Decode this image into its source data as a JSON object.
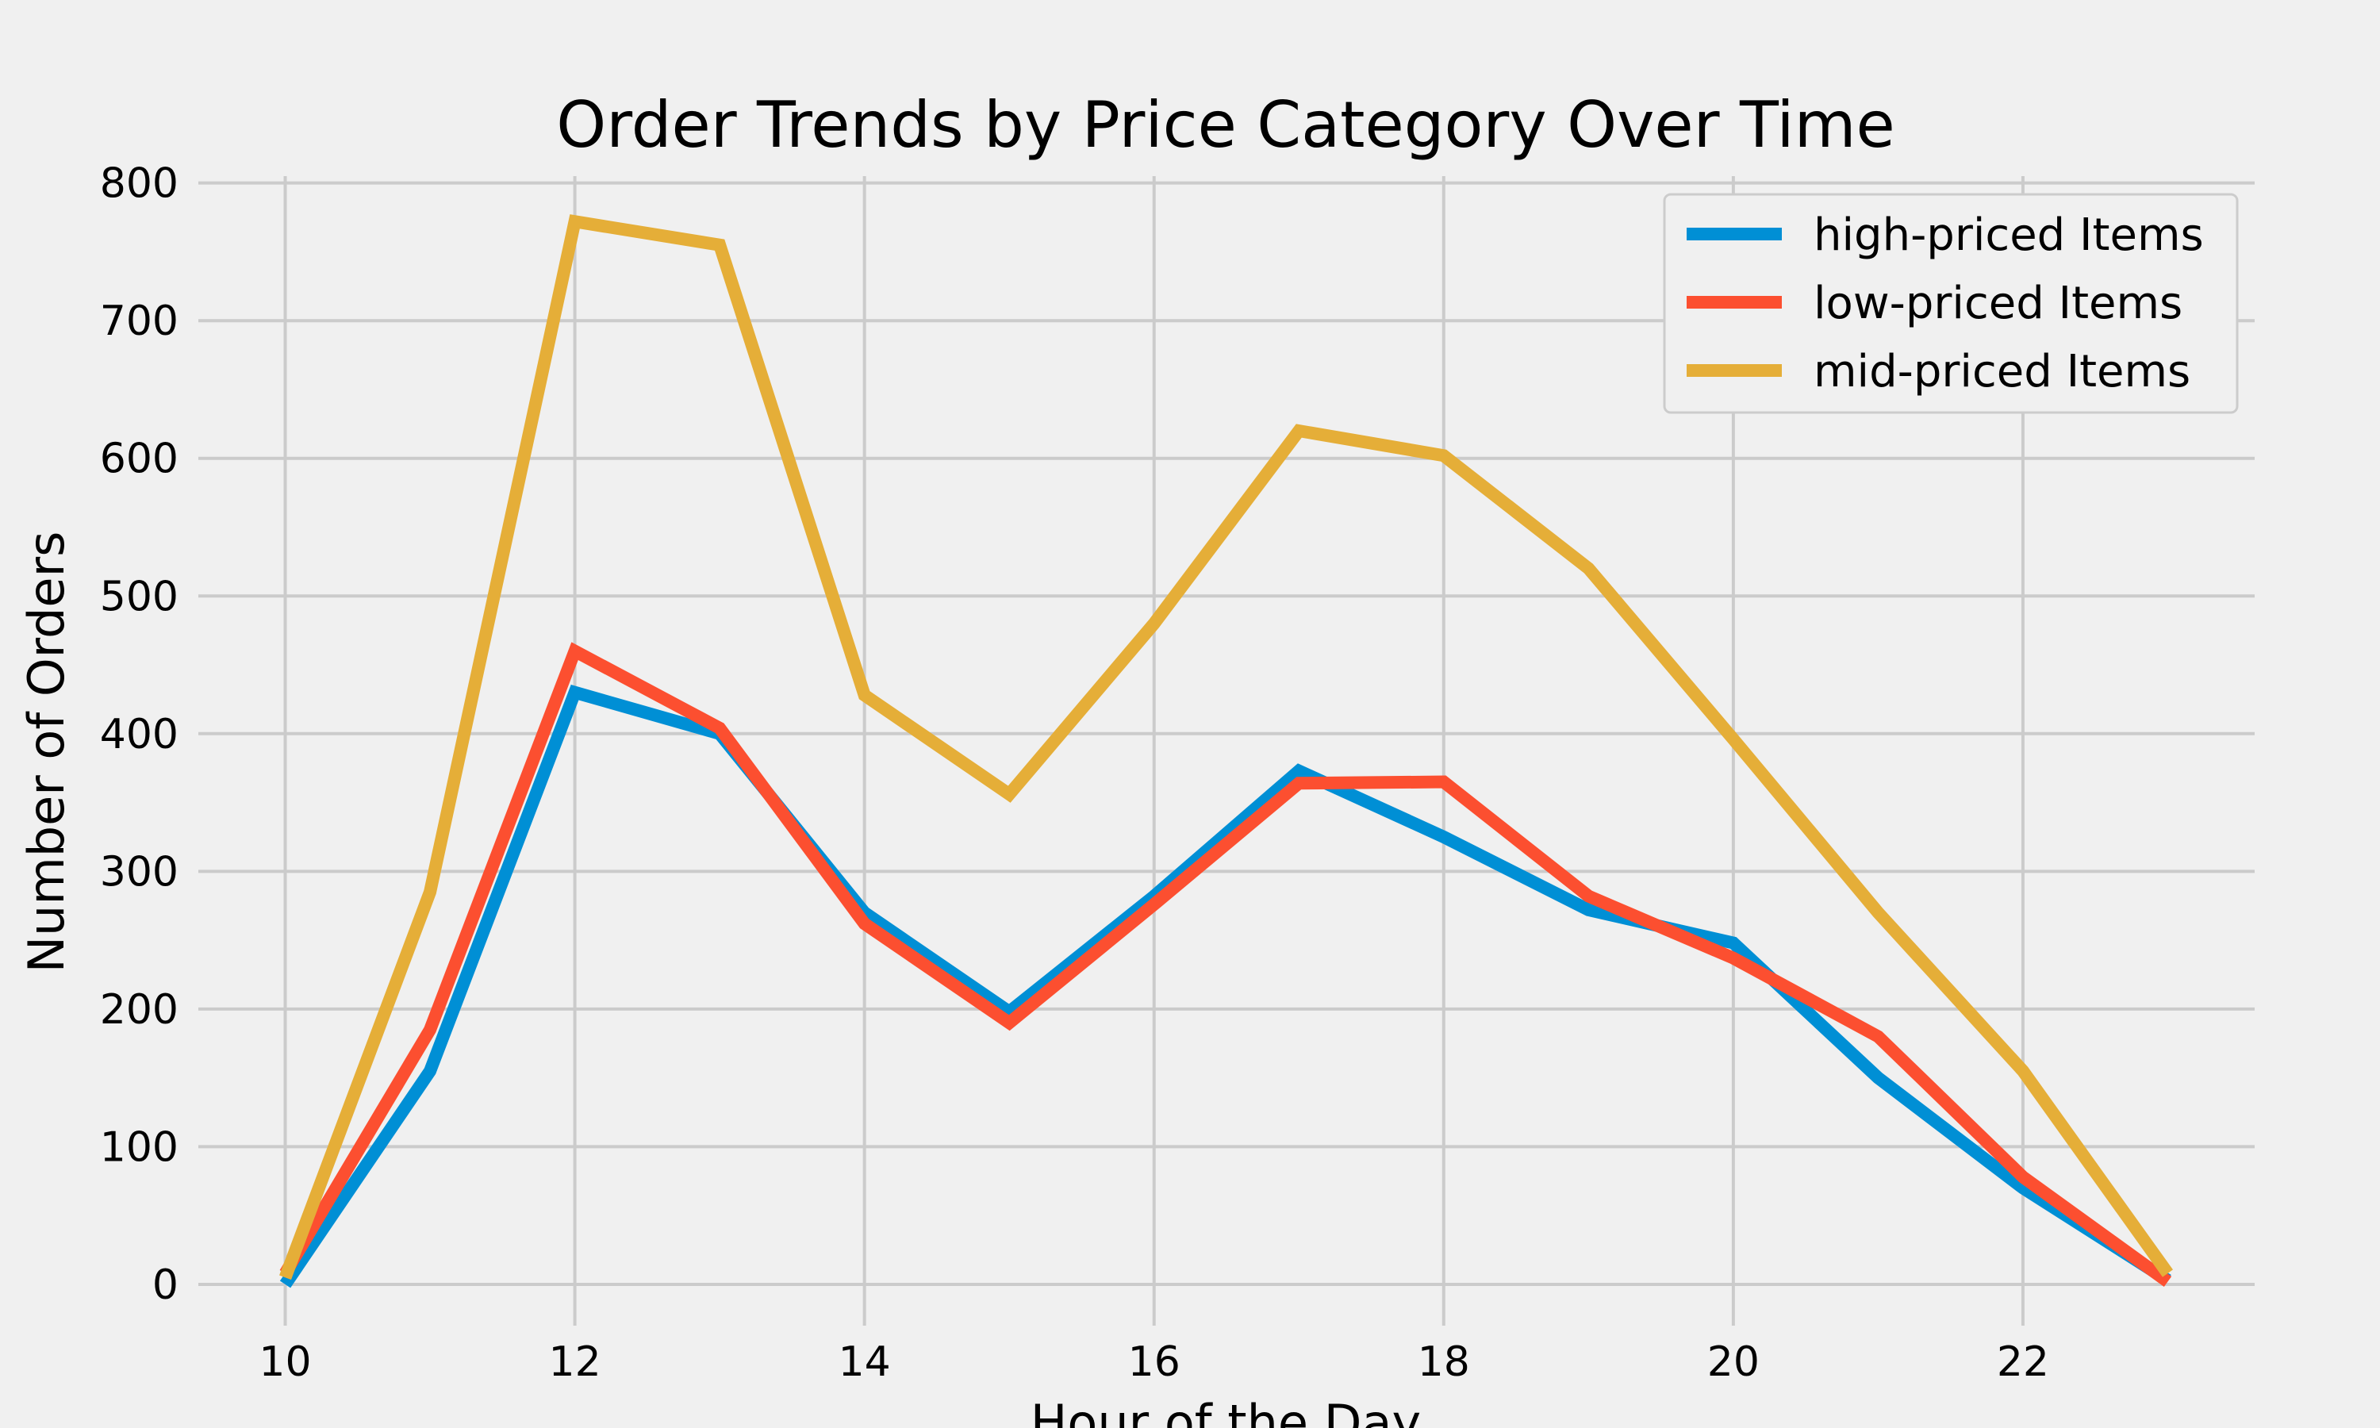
{
  "chart_data": {
    "type": "line",
    "title": "Order Trends by Price Category Over Time",
    "xlabel": "Hour of the Day",
    "ylabel": "Number of Orders",
    "x": [
      10,
      11,
      12,
      13,
      14,
      15,
      16,
      17,
      18,
      19,
      20,
      21,
      22,
      23
    ],
    "xlim": [
      9.4,
      23.6
    ],
    "ylim": [
      -30,
      805
    ],
    "xticks": [
      10,
      12,
      14,
      16,
      18,
      20,
      22
    ],
    "yticks": [
      0,
      100,
      200,
      300,
      400,
      500,
      600,
      700,
      800
    ],
    "grid": true,
    "legend_position": "top-right",
    "series": [
      {
        "name": "high-priced Items",
        "color": "#008fd5",
        "values": [
          0,
          155,
          430,
          400,
          270,
          198,
          282,
          373,
          325,
          272,
          248,
          150,
          70,
          3
        ]
      },
      {
        "name": "low-priced Items",
        "color": "#fc4f30",
        "values": [
          8,
          185,
          460,
          404,
          262,
          190,
          276,
          364,
          365,
          282,
          237,
          180,
          78,
          2
        ]
      },
      {
        "name": "mid-priced Items",
        "color": "#e5ae38",
        "values": [
          5,
          285,
          772,
          755,
          428,
          356,
          480,
          620,
          602,
          520,
          396,
          270,
          155,
          8
        ]
      }
    ]
  }
}
